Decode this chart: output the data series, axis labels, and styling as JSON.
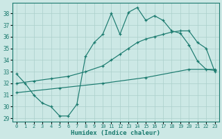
{
  "xlabel": "Humidex (Indice chaleur)",
  "xlim": [
    -0.5,
    23.5
  ],
  "ylim": [
    28.7,
    38.9
  ],
  "yticks": [
    29,
    30,
    31,
    32,
    33,
    34,
    35,
    36,
    37,
    38
  ],
  "xticks": [
    0,
    1,
    2,
    3,
    4,
    5,
    6,
    7,
    8,
    9,
    10,
    11,
    12,
    13,
    14,
    15,
    16,
    17,
    18,
    19,
    20,
    21,
    22,
    23
  ],
  "bg_color": "#cce8e5",
  "line_color": "#1a7a6e",
  "grid_color": "#aacfcb",
  "line1_x": [
    0,
    1,
    2,
    3,
    4,
    5,
    6,
    7,
    8,
    9,
    10,
    11,
    12,
    13,
    14,
    15,
    16,
    17,
    18,
    19,
    20,
    21,
    22,
    23
  ],
  "line1_y": [
    32.8,
    32.0,
    31.0,
    30.3,
    30.0,
    29.2,
    29.2,
    30.2,
    34.3,
    35.5,
    36.2,
    38.0,
    36.2,
    38.1,
    38.5,
    37.4,
    37.8,
    37.4,
    36.5,
    36.3,
    35.3,
    33.9,
    33.2,
    33.1
  ],
  "line2_x": [
    0,
    2,
    4,
    6,
    8,
    10,
    11,
    12,
    13,
    14,
    15,
    16,
    17,
    18,
    19,
    20,
    21,
    22,
    23
  ],
  "line2_y": [
    32.0,
    32.2,
    32.4,
    32.6,
    33.0,
    33.5,
    34.0,
    34.5,
    35.0,
    35.5,
    35.8,
    36.0,
    36.2,
    36.4,
    36.5,
    36.5,
    35.5,
    35.0,
    33.0
  ],
  "line3_x": [
    0,
    5,
    10,
    15,
    20,
    23
  ],
  "line3_y": [
    31.2,
    31.6,
    32.0,
    32.5,
    33.2,
    33.2
  ]
}
